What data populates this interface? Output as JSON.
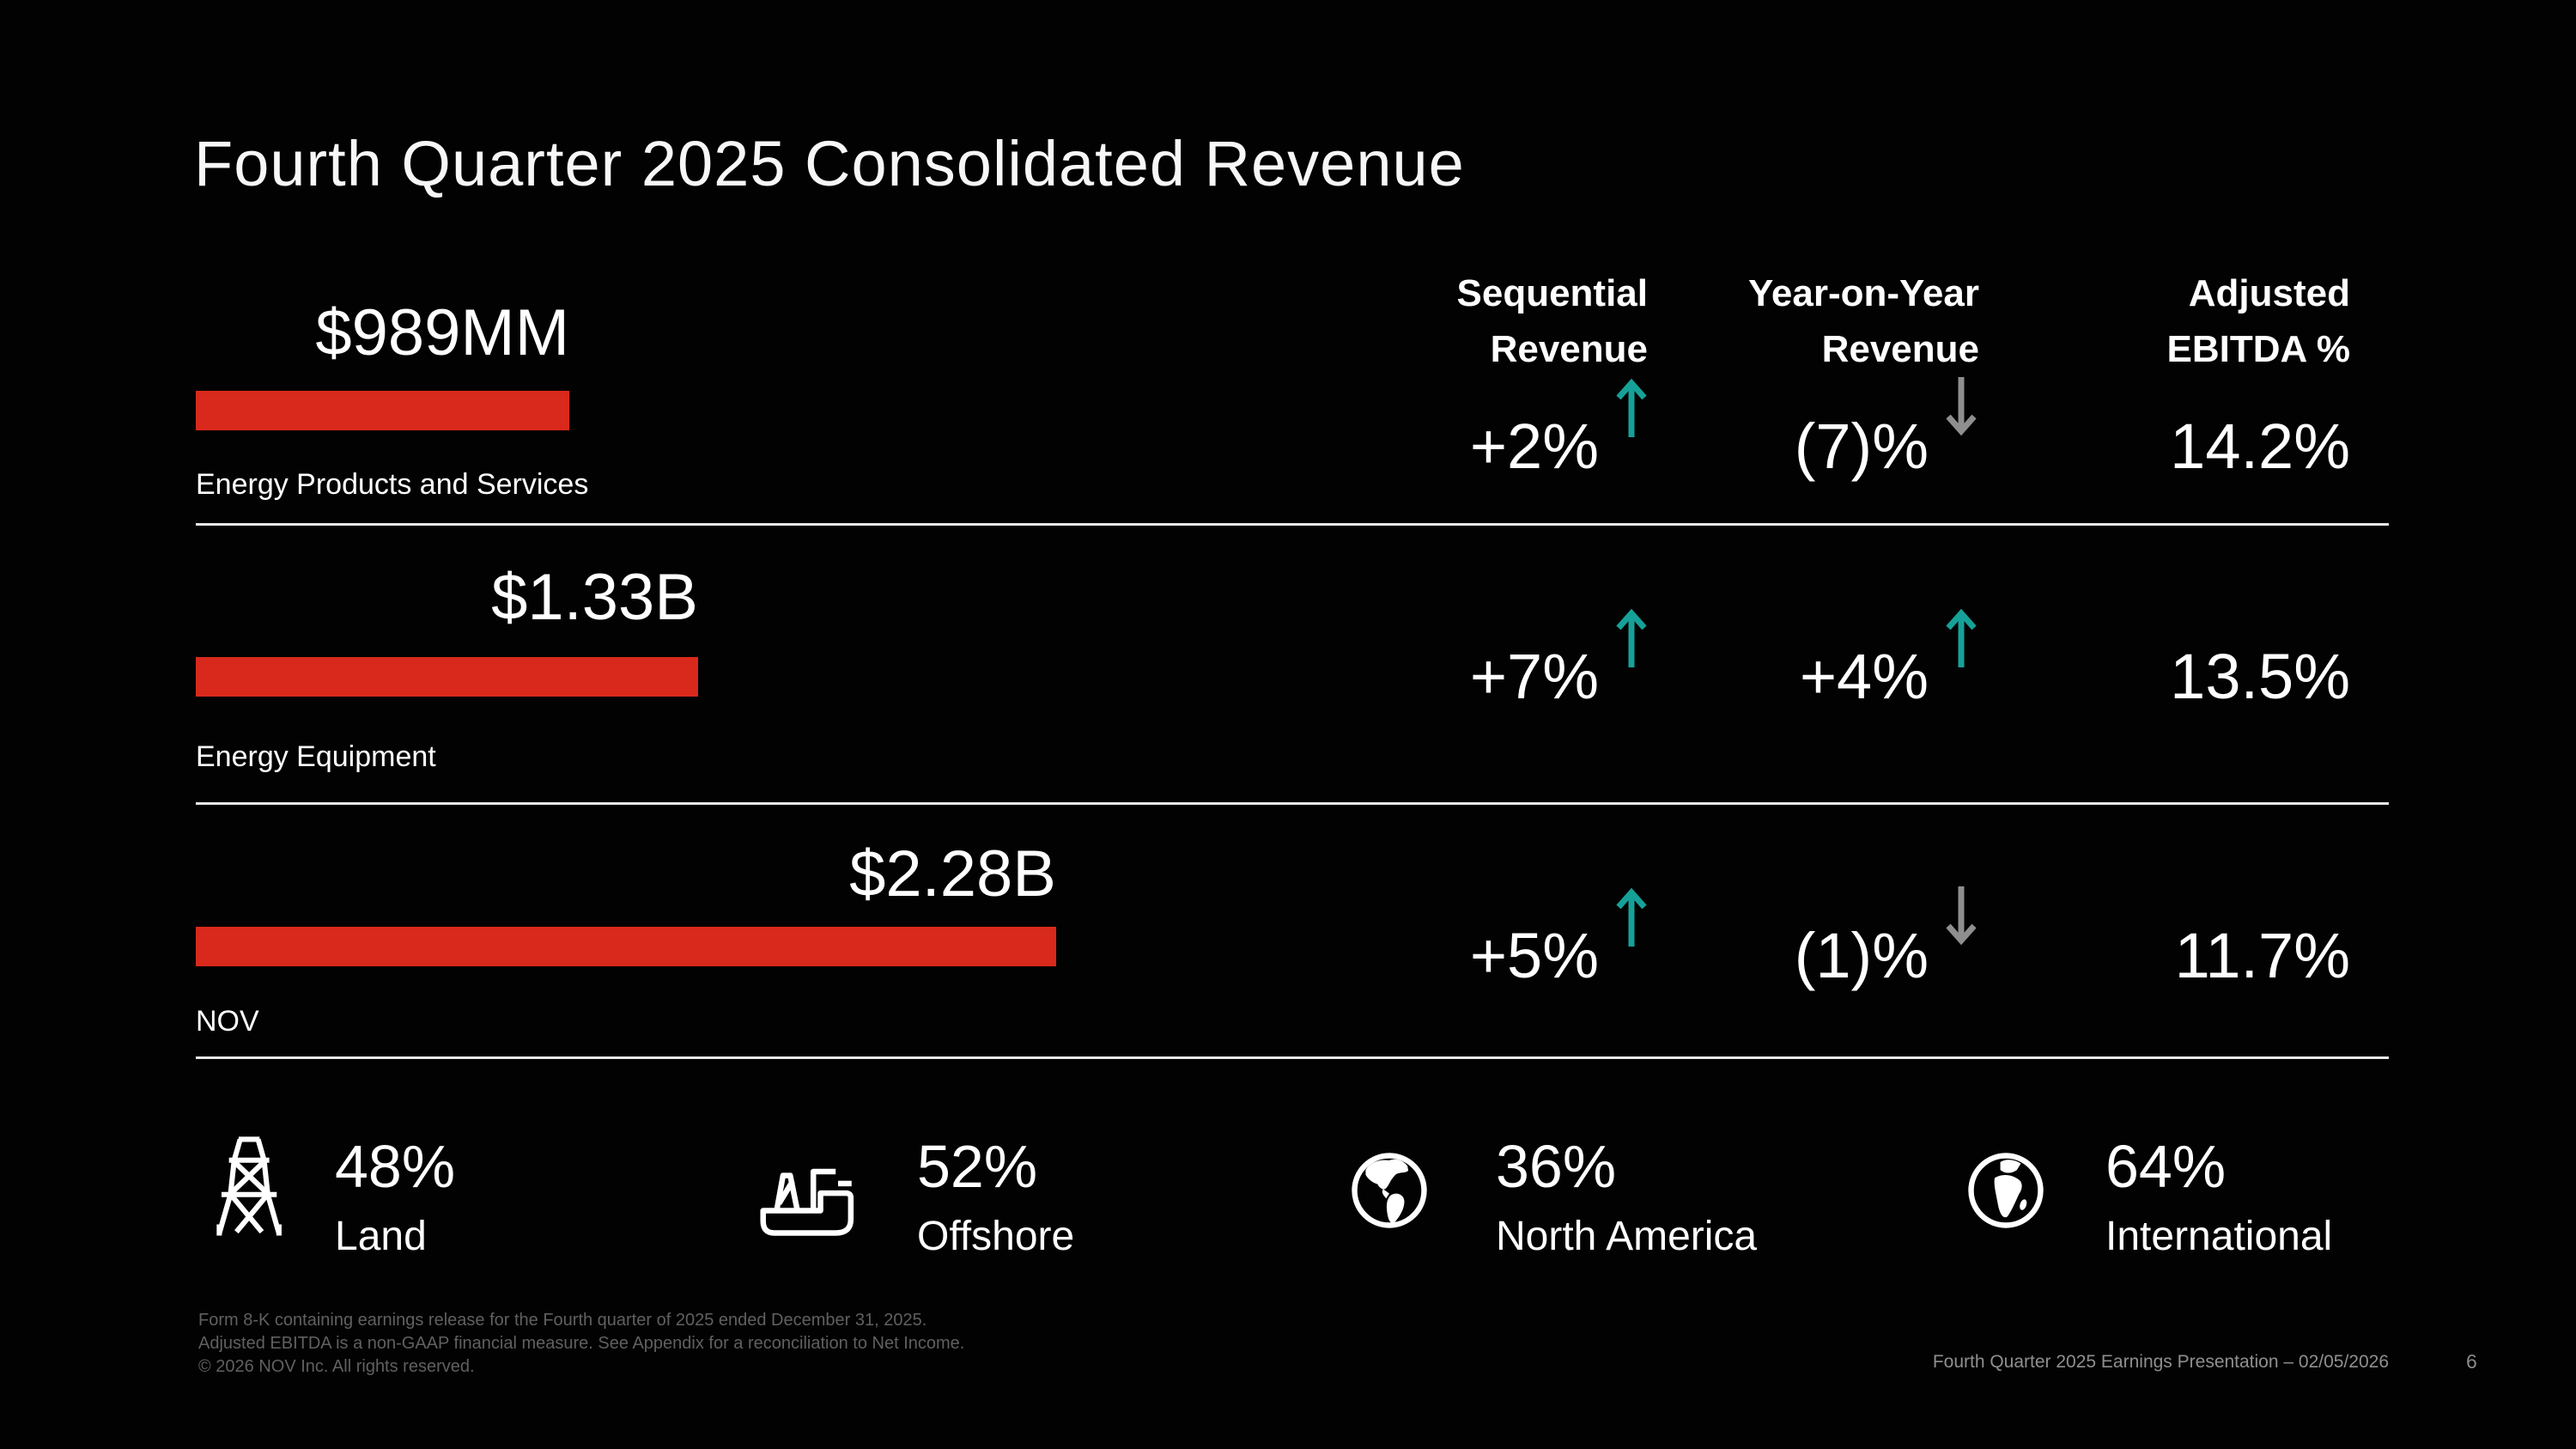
{
  "slide": {
    "title": "Fourth Quarter 2025 Consolidated Revenue",
    "footer_notes": [
      "Form 8-K containing earnings release for the Fourth quarter of 2025 ended December 31, 2025.",
      "Adjusted EBITDA is a non-GAAP financial measure. See Appendix for a reconciliation to Net Income.",
      "© 2026 NOV Inc. All rights reserved."
    ],
    "footer_right": "Fourth Quarter 2025 Earnings Presentation – 02/05/2026",
    "page_number": "6"
  },
  "columns": [
    {
      "label": "Sequential\nRevenue"
    },
    {
      "label": "Year-on-Year\nRevenue"
    },
    {
      "label": "Adjusted\nEBITDA %"
    }
  ],
  "chart_data": {
    "type": "bar",
    "orientation": "horizontal",
    "title": "Fourth Quarter 2025 Consolidated Revenue",
    "bar_color": "#d9291c",
    "max_value_mm": 2280,
    "rows": [
      {
        "category": "Energy Products and Services",
        "revenue_mm": 989,
        "revenue_label": "$989MM",
        "sequential": "+2%",
        "sequential_dir": "up",
        "yoy": "(7)%",
        "yoy_dir": "down",
        "ebitda": "14.2%"
      },
      {
        "category": "Energy Equipment",
        "revenue_mm": 1330,
        "revenue_label": "$1.33B",
        "sequential": "+7%",
        "sequential_dir": "up",
        "yoy": "+4%",
        "yoy_dir": "up",
        "ebitda": "13.5%"
      },
      {
        "category": "NOV",
        "revenue_mm": 2280,
        "revenue_label": "$2.28B",
        "sequential": "+5%",
        "sequential_dir": "up",
        "yoy": "(1)%",
        "yoy_dir": "down",
        "ebitda": "11.7%"
      }
    ]
  },
  "stats": [
    {
      "icon": "derrick-icon",
      "value": "48%",
      "label": "Land"
    },
    {
      "icon": "drillship-icon",
      "value": "52%",
      "label": "Offshore"
    },
    {
      "icon": "globe-americas-icon",
      "value": "36%",
      "label": "North America"
    },
    {
      "icon": "globe-international-icon",
      "value": "64%",
      "label": "International"
    }
  ],
  "colors": {
    "bar_red": "#d9291c",
    "trend_up_teal": "#16a198",
    "trend_down_gray": "#8f8f8f",
    "background": "#000000",
    "divider": "#e8e8e8"
  }
}
